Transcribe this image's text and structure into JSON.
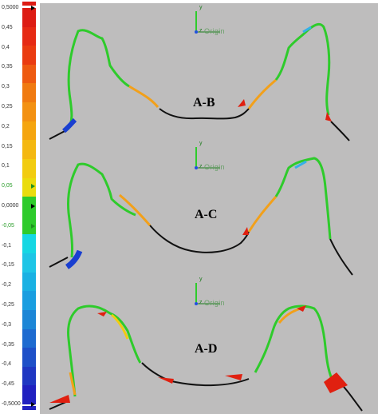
{
  "color_scale": {
    "labels": [
      {
        "text": "0,5000",
        "marker": true,
        "green": false
      },
      {
        "text": "0,45",
        "marker": false,
        "green": false
      },
      {
        "text": "0,4",
        "marker": false,
        "green": false
      },
      {
        "text": "0,35",
        "marker": false,
        "green": false
      },
      {
        "text": "0,3",
        "marker": false,
        "green": false
      },
      {
        "text": "0,25",
        "marker": false,
        "green": false
      },
      {
        "text": "0,2",
        "marker": false,
        "green": false
      },
      {
        "text": "0,15",
        "marker": false,
        "green": false
      },
      {
        "text": "0,1",
        "marker": false,
        "green": false
      },
      {
        "text": "0,05",
        "marker": true,
        "green": true
      },
      {
        "text": "0,0000",
        "marker": true,
        "green": false
      },
      {
        "text": "-0,05",
        "marker": true,
        "green": true
      },
      {
        "text": "-0,1",
        "marker": false,
        "green": false
      },
      {
        "text": "-0,15",
        "marker": false,
        "green": false
      },
      {
        "text": "-0,2",
        "marker": false,
        "green": false
      },
      {
        "text": "-0,25",
        "marker": false,
        "green": false
      },
      {
        "text": "-0,3",
        "marker": false,
        "green": false
      },
      {
        "text": "-0,35",
        "marker": false,
        "green": false
      },
      {
        "text": "-0,4",
        "marker": false,
        "green": false
      },
      {
        "text": "-0,45",
        "marker": false,
        "green": false
      },
      {
        "text": "-0,5000",
        "marker": true,
        "green": false
      }
    ],
    "colors": [
      "#dd1c14",
      "#e62a14",
      "#ea3b10",
      "#ee5a10",
      "#f07a10",
      "#f39112",
      "#f5a50f",
      "#f4b811",
      "#f2cc10",
      "#eadc0d",
      "#2ecb2b",
      "#2ecb2b",
      "#15d7e3",
      "#1ec5e6",
      "#1ab1e3",
      "#1a9ee0",
      "#1d86d6",
      "#1e6bd0",
      "#1e50c8",
      "#1f37c2",
      "#2020c0"
    ],
    "top_cap": "#dd1c14",
    "bottom_cap": "#2020c0"
  },
  "panels": [
    {
      "label": "A-B",
      "axis_y": "y",
      "axis_z": "z",
      "origin": "Origin"
    },
    {
      "label": "A-C",
      "axis_y": "y",
      "axis_z": "z",
      "origin": "Origin"
    },
    {
      "label": "A-D",
      "axis_y": "y",
      "axis_z": "z",
      "origin": "Origin"
    }
  ],
  "colors": {
    "background": "#bebdbd",
    "curve_base": "#2ecb2b",
    "curve_black": "#111111",
    "deviation_positive": "#e02010",
    "deviation_mid": "#f2a01a",
    "deviation_negative": "#1a3fd0",
    "deviation_light": "#36b0e8"
  }
}
